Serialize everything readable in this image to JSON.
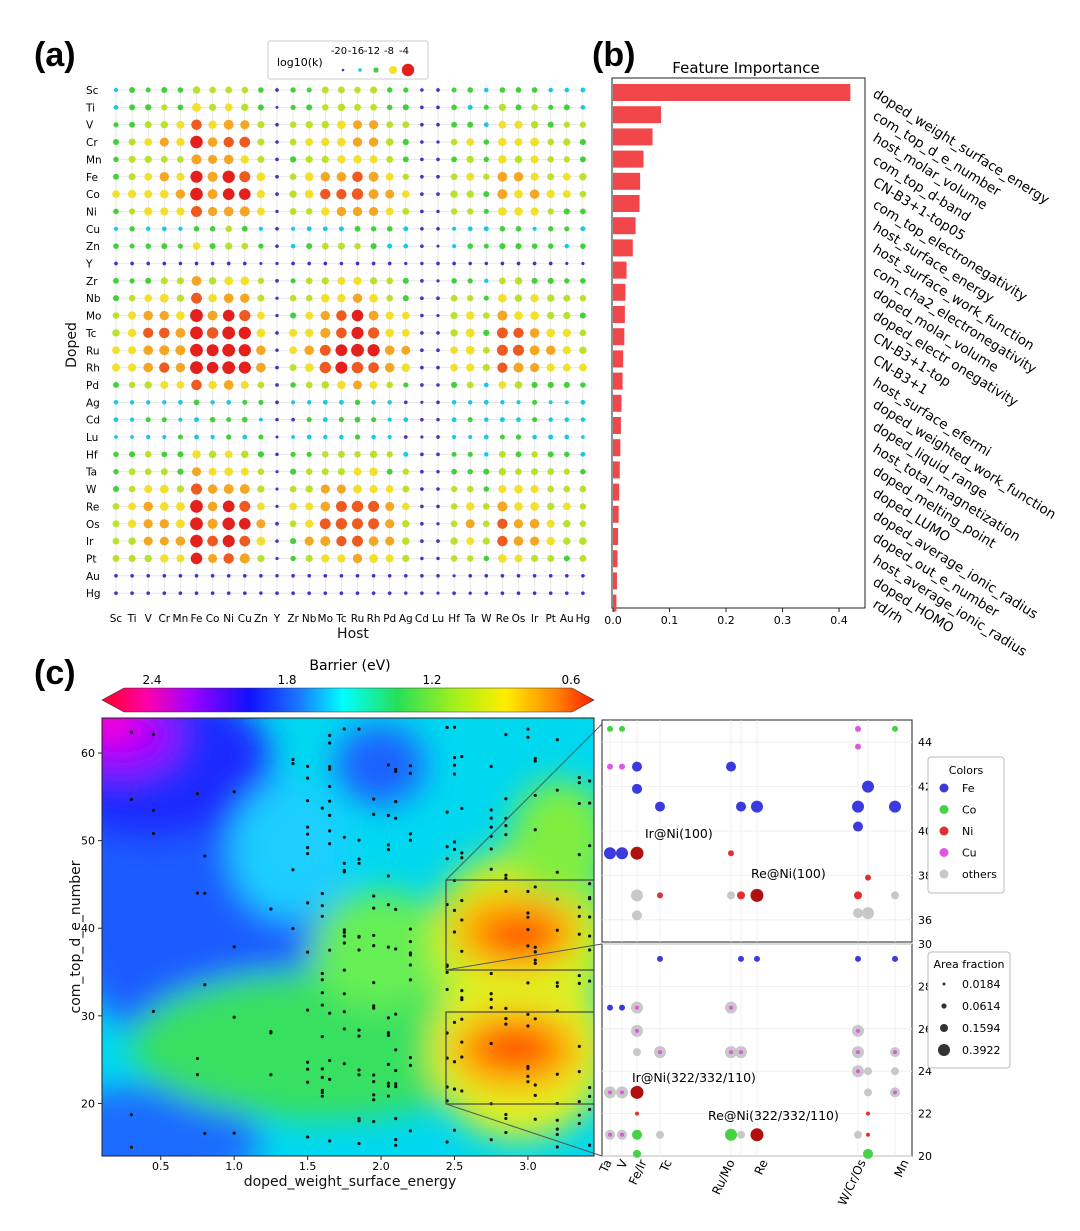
{
  "panel_labels": [
    "(a)",
    "(b)",
    "(c)"
  ],
  "chart_data": [
    {
      "type": "scatter",
      "panel": "(a)",
      "xlabel": "Host",
      "ylabel": "Doped",
      "x_categories": [
        "Sc",
        "Ti",
        "V",
        "Cr",
        "Mn",
        "Fe",
        "Co",
        "Ni",
        "Cu",
        "Zn",
        "Y",
        "Zr",
        "Nb",
        "Mo",
        "Tc",
        "Ru",
        "Rh",
        "Pd",
        "Ag",
        "Cd",
        "Lu",
        "Hf",
        "Ta",
        "W",
        "Re",
        "Os",
        "Ir",
        "Pt",
        "Au",
        "Hg"
      ],
      "y_categories": [
        "Sc",
        "Ti",
        "V",
        "Cr",
        "Mn",
        "Fe",
        "Co",
        "Ni",
        "Cu",
        "Zn",
        "Y",
        "Zr",
        "Nb",
        "Mo",
        "Tc",
        "Ru",
        "Rh",
        "Pd",
        "Ag",
        "Cd",
        "Lu",
        "Hf",
        "Ta",
        "W",
        "Re",
        "Os",
        "Ir",
        "Pt",
        "Au",
        "Hg"
      ],
      "legend_title": "log10(k)",
      "legend_levels": [
        "-20",
        "-16",
        "-12",
        "-8",
        "-4"
      ],
      "legend_colors": [
        "#4b2fc4",
        "#19c9e0",
        "#44d03a",
        "#f2e02a",
        "#e3201c"
      ],
      "grid": true,
      "note": "Bubble size and colour encode log10(k) for each Host×Doped pair; values estimated from the figure (-20 … -4)."
    },
    {
      "type": "bar",
      "panel": "(b)",
      "title": "Feature Importance",
      "orientation": "horizontal",
      "categories": [
        "doped_weight_surface_energy",
        "com_top_d_e_number",
        "host_molar_volume",
        "com_top_d-band",
        "CN-B3+1-top05",
        "com_top_electronegativity",
        "host_surface_energy",
        "host_surface_work_function",
        "com_cha2_electronegativity",
        "doped_molar_volume",
        "doped_electr onegativity",
        "CN-B3+1-top",
        "CN-B3+1",
        "host_surface_efermi",
        "doped_weighted_work_function",
        "doped_liquid_range",
        "host_total_magnetization",
        "doped_melting_point",
        "doped_LUMO",
        "doped_average_ionic_radius",
        "doped_out_e_number",
        "host_average_ionic_radius",
        "doped_HOMO",
        "rd/rh"
      ],
      "values": [
        0.42,
        0.085,
        0.07,
        0.054,
        0.048,
        0.047,
        0.04,
        0.035,
        0.024,
        0.022,
        0.021,
        0.02,
        0.018,
        0.017,
        0.015,
        0.014,
        0.013,
        0.012,
        0.011,
        0.01,
        0.009,
        0.008,
        0.007,
        0.006
      ],
      "xlim": [
        0,
        0.43
      ],
      "xticks": [
        "0.0",
        "0.1",
        "0.2",
        "0.3",
        "0.4"
      ],
      "color": "#f2474a"
    },
    {
      "type": "heatmap",
      "panel": "(c)",
      "xlabel": "doped_weight_surface_energy",
      "ylabel": "com_top_d_e_number",
      "xlim": [
        0.1,
        3.45
      ],
      "ylim": [
        14,
        64
      ],
      "xticks": [
        "0.5",
        "1.0",
        "1.5",
        "2.0",
        "2.5",
        "3.0"
      ],
      "yticks": [
        "20",
        "30",
        "40",
        "50",
        "60"
      ],
      "colorbar": {
        "label": "Barrier (eV)",
        "ticks": [
          "2.4",
          "1.8",
          "1.2",
          "0.6"
        ],
        "range": [
          2.6,
          0.45
        ]
      },
      "highlight_boxes": [
        {
          "x": [
            2.5,
            3.45
          ],
          "y": [
            35,
            45
          ]
        },
        {
          "x": [
            2.5,
            3.45
          ],
          "y": [
            20,
            30
          ]
        }
      ]
    },
    {
      "type": "scatter",
      "panel": "(c) zoom upper",
      "yticks": [
        "36",
        "38",
        "40",
        "42",
        "44"
      ],
      "ylim": [
        35,
        45
      ],
      "annotations": [
        "Ir@Ni(100)",
        "Re@Ni(100)"
      ]
    },
    {
      "type": "scatter",
      "panel": "(c) zoom lower",
      "yticks": [
        "20",
        "22",
        "24",
        "26",
        "28",
        "30"
      ],
      "ylim": [
        20,
        30
      ],
      "xticks": [
        "Ta",
        "V",
        "Fe/Ir",
        "Tc",
        "Ru/Mo",
        "Re",
        "W/Cr/Os",
        "Mn"
      ],
      "annotations": [
        "Ir@Ni(322/332/110)",
        "Re@Ni(322/332/110)"
      ]
    }
  ],
  "legends": {
    "colors": {
      "title": "Colors",
      "items": [
        {
          "label": "Fe",
          "color": "#3a3adf"
        },
        {
          "label": "Co",
          "color": "#44d344"
        },
        {
          "label": "Ni",
          "color": "#e03030"
        },
        {
          "label": "Cu",
          "color": "#e056e0"
        },
        {
          "label": "others",
          "color": "#c8c8c8"
        }
      ]
    },
    "area": {
      "title": "Area fraction",
      "items": [
        "0.0184",
        "0.0614",
        "0.1594",
        "0.3922"
      ]
    }
  }
}
